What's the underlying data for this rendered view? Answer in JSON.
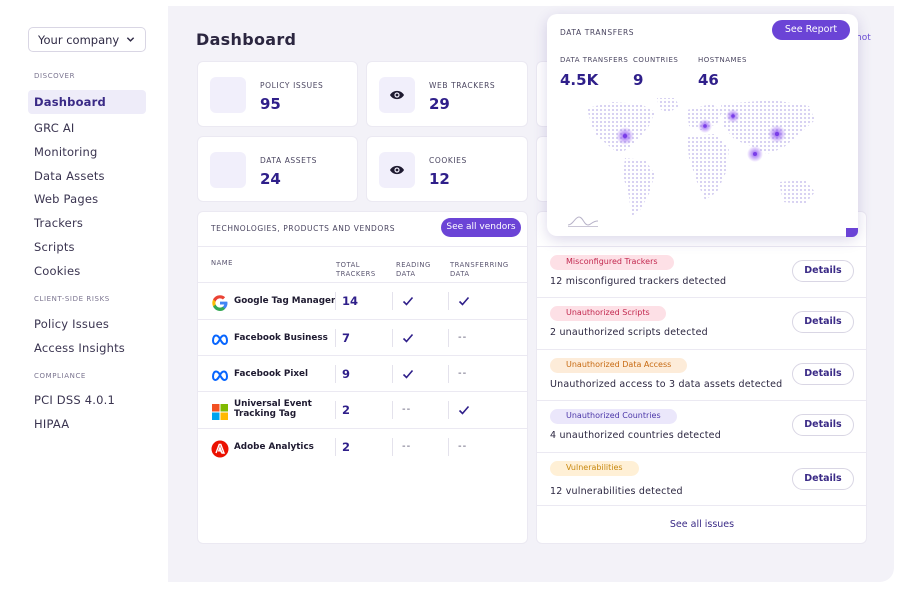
{
  "company_select": {
    "label": "Your company"
  },
  "sidebar": {
    "sections": [
      "DISCOVER",
      "CLIENT-SIDE RISKS",
      "COMPLIANCE"
    ],
    "items": [
      {
        "label": "Dashboard",
        "active": true
      },
      {
        "label": "GRC AI"
      },
      {
        "label": "Monitoring"
      },
      {
        "label": "Data Assets"
      },
      {
        "label": "Web Pages"
      },
      {
        "label": "Trackers"
      },
      {
        "label": "Scripts"
      },
      {
        "label": "Cookies"
      },
      {
        "label": "Policy Issues"
      },
      {
        "label": "Access Insights"
      },
      {
        "label": "PCI DSS 4.0.1"
      },
      {
        "label": "HIPAA"
      }
    ]
  },
  "page_title": "Dashboard",
  "partial_header_text": "hot",
  "stats": [
    {
      "label": "POLICY ISSUES",
      "value": "95",
      "icon": "blank-icon"
    },
    {
      "label": "WEB TRACKERS",
      "value": "29",
      "icon": "eye-icon"
    },
    {
      "label": "DATA ASSETS",
      "value": "24",
      "icon": "blank-icon"
    },
    {
      "label": "COOKIES",
      "value": "12",
      "icon": "eye-icon"
    }
  ],
  "technologies": {
    "title": "TECHNOLOGIES, PRODUCTS AND VENDORS",
    "button": "See all vendors",
    "columns": [
      "NAME",
      "TOTAL TRACKERS",
      "READING DATA",
      "TRANSFERRING DATA"
    ],
    "rows": [
      {
        "name": "Google Tag Manager",
        "trackers": "14",
        "reading": true,
        "transferring": true
      },
      {
        "name": "Facebook Business",
        "trackers": "7",
        "reading": true,
        "transferring": false
      },
      {
        "name": "Facebook Pixel",
        "trackers": "9",
        "reading": true,
        "transferring": false
      },
      {
        "name": "Universal Event Tracking Tag",
        "trackers": "2",
        "reading": false,
        "transferring": true
      },
      {
        "name": "Adobe Analytics",
        "trackers": "2",
        "reading": false,
        "transferring": false
      }
    ],
    "dash": "--"
  },
  "issues": {
    "items": [
      {
        "tag": "Misconfigured Trackers",
        "text": "12 misconfigured trackers detected",
        "tag_bg": "#fde0e6",
        "tag_color": "#c2284f"
      },
      {
        "tag": "Unauthorized Scripts",
        "text": "2 unauthorized scripts detected",
        "tag_bg": "#fde0e6",
        "tag_color": "#c2284f"
      },
      {
        "tag": "Unauthorized Data Access",
        "text": "Unauthorized access to 3 data assets detected",
        "tag_bg": "#fdecd9",
        "tag_color": "#c76a12"
      },
      {
        "tag": "Unauthorized Countries",
        "text": "4 unauthorized countries detected",
        "tag_bg": "#ebe7fb",
        "tag_color": "#4b36a8"
      },
      {
        "tag": "Vulnerabilities",
        "text": "12 vulnerabilities detected",
        "tag_bg": "#fff0d6",
        "tag_color": "#c7880f"
      }
    ],
    "details_label": "Details",
    "see_all": "See all issues"
  },
  "data_transfers": {
    "title": "DATA TRANSFERS",
    "button": "See Report",
    "metrics": [
      {
        "label": "DATA TRANSFERS",
        "value": "4.5K"
      },
      {
        "label": "COUNTRIES",
        "value": "9"
      },
      {
        "label": "HOSTNAMES",
        "value": "46"
      }
    ]
  },
  "colors": {
    "accent": "#6b44d6",
    "value": "#2f1f8a",
    "background": "#f3f2f8"
  }
}
